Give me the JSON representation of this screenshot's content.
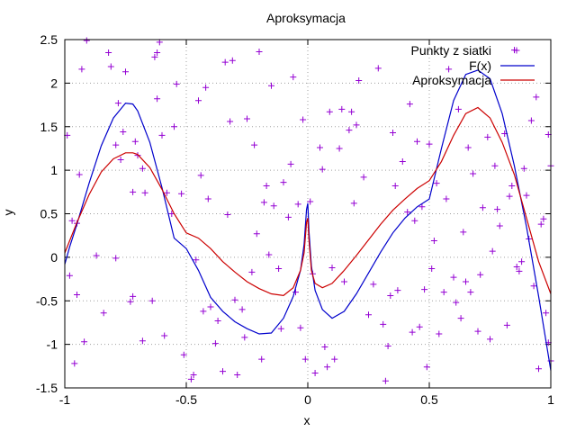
{
  "chart_data": {
    "type": "line",
    "title": "Aproksymacja",
    "xlabel": "x",
    "ylabel": "y",
    "xlim": [
      -1,
      1
    ],
    "ylim": [
      -1.5,
      2.5
    ],
    "xticks": [
      "-1",
      "-0.5",
      "0",
      "0.5",
      "1"
    ],
    "yticks": [
      "-1.5",
      "-1",
      "-0.5",
      "0",
      "0.5",
      "1",
      "1.5",
      "2",
      "2.5"
    ],
    "grid": true,
    "legend_position": "top-right",
    "series": [
      {
        "name": "Punkty z siatki",
        "style": "points",
        "marker": "+",
        "color": "#9400d3",
        "points": [
          [
            -0.99,
            1.4
          ],
          [
            -0.98,
            -0.21
          ],
          [
            -0.97,
            0.42
          ],
          [
            -0.96,
            -1.22
          ],
          [
            -0.95,
            0.39
          ],
          [
            -0.95,
            -0.43
          ],
          [
            -0.94,
            0.95
          ],
          [
            -0.93,
            2.16
          ],
          [
            -0.92,
            -0.97
          ],
          [
            -0.91,
            2.49
          ],
          [
            -0.87,
            0.02
          ],
          [
            -0.84,
            -0.64
          ],
          [
            -0.82,
            2.35
          ],
          [
            -0.81,
            2.19
          ],
          [
            -0.79,
            -0.01
          ],
          [
            -0.79,
            1.29
          ],
          [
            -0.78,
            1.77
          ],
          [
            -0.77,
            1.12
          ],
          [
            -0.76,
            1.44
          ],
          [
            -0.75,
            2.13
          ],
          [
            -0.73,
            -0.51
          ],
          [
            -0.72,
            0.75
          ],
          [
            -0.72,
            -0.45
          ],
          [
            -0.71,
            1.33
          ],
          [
            -0.7,
            1.17
          ],
          [
            -0.68,
            -0.96
          ],
          [
            -0.68,
            1.02
          ],
          [
            -0.67,
            0.74
          ],
          [
            -0.64,
            -0.5
          ],
          [
            -0.63,
            2.3
          ],
          [
            -0.62,
            2.35
          ],
          [
            -0.62,
            1.82
          ],
          [
            -0.61,
            2.47
          ],
          [
            -0.6,
            1.4
          ],
          [
            -0.59,
            -0.9
          ],
          [
            -0.58,
            0.74
          ],
          [
            -0.56,
            0.5
          ],
          [
            -0.55,
            1.5
          ],
          [
            -0.54,
            1.99
          ],
          [
            -0.52,
            0.73
          ],
          [
            -0.51,
            -1.12
          ],
          [
            -0.48,
            -1.4
          ],
          [
            -0.47,
            -1.35
          ],
          [
            -0.46,
            -0.03
          ],
          [
            -0.45,
            1.8
          ],
          [
            -0.44,
            0.94
          ],
          [
            -0.43,
            -0.62
          ],
          [
            -0.42,
            1.95
          ],
          [
            -0.41,
            0.67
          ],
          [
            -0.4,
            -0.57
          ],
          [
            -0.38,
            -0.99
          ],
          [
            -0.37,
            -0.73
          ],
          [
            -0.35,
            -1.31
          ],
          [
            -0.34,
            2.24
          ],
          [
            -0.33,
            0.49
          ],
          [
            -0.32,
            1.56
          ],
          [
            -0.31,
            2.26
          ],
          [
            -0.3,
            -0.49
          ],
          [
            -0.29,
            -1.35
          ],
          [
            -0.27,
            -0.6
          ],
          [
            -0.26,
            -0.92
          ],
          [
            -0.25,
            1.59
          ],
          [
            -0.23,
            -0.17
          ],
          [
            -0.22,
            1.29
          ],
          [
            -0.21,
            0.27
          ],
          [
            -0.2,
            2.36
          ],
          [
            -0.19,
            -1.17
          ],
          [
            -0.18,
            0.63
          ],
          [
            -0.17,
            0.82
          ],
          [
            -0.16,
            0.03
          ],
          [
            -0.15,
            1.97
          ],
          [
            -0.14,
            0.59
          ],
          [
            -0.12,
            -0.13
          ],
          [
            -0.11,
            -0.82
          ],
          [
            -0.1,
            0.86
          ],
          [
            -0.08,
            0.46
          ],
          [
            -0.07,
            1.07
          ],
          [
            -0.06,
            2.07
          ],
          [
            -0.05,
            -0.4
          ],
          [
            -0.04,
            0.61
          ],
          [
            -0.03,
            -0.81
          ],
          [
            -0.02,
            1.58
          ],
          [
            -0.01,
            -1.17
          ],
          [
            0.01,
            0.64
          ],
          [
            0.02,
            -0.19
          ],
          [
            0.03,
            -1.33
          ],
          [
            0.05,
            1.26
          ],
          [
            0.06,
            1.01
          ],
          [
            0.07,
            -1.03
          ],
          [
            0.08,
            -1.26
          ],
          [
            0.09,
            1.67
          ],
          [
            0.1,
            -0.12
          ],
          [
            0.11,
            -1.17
          ],
          [
            0.13,
            1.25
          ],
          [
            0.14,
            1.7
          ],
          [
            0.15,
            -0.28
          ],
          [
            0.17,
            1.46
          ],
          [
            0.18,
            1.67
          ],
          [
            0.19,
            0.62
          ],
          [
            0.2,
            1.52
          ],
          [
            0.21,
            2.03
          ],
          [
            0.23,
            0.92
          ],
          [
            0.25,
            -0.66
          ],
          [
            0.27,
            -0.31
          ],
          [
            0.29,
            2.17
          ],
          [
            0.31,
            -0.77
          ],
          [
            0.32,
            -1.42
          ],
          [
            0.33,
            -1.02
          ],
          [
            0.34,
            -0.44
          ],
          [
            0.35,
            1.43
          ],
          [
            0.36,
            0.82
          ],
          [
            0.37,
            -0.38
          ],
          [
            0.39,
            1.1
          ],
          [
            0.41,
            0.52
          ],
          [
            0.42,
            1.76
          ],
          [
            0.43,
            -0.86
          ],
          [
            0.44,
            0.42
          ],
          [
            0.45,
            1.33
          ],
          [
            0.46,
            -0.8
          ],
          [
            0.47,
            0.58
          ],
          [
            0.48,
            -0.37
          ],
          [
            0.49,
            -1.26
          ],
          [
            0.5,
            1.3
          ],
          [
            0.51,
            -0.13
          ],
          [
            0.52,
            0.19
          ],
          [
            0.53,
            0.85
          ],
          [
            0.54,
            -0.88
          ],
          [
            0.56,
            -0.4
          ],
          [
            0.57,
            0.67
          ],
          [
            0.58,
            2.16
          ],
          [
            0.6,
            -0.23
          ],
          [
            0.61,
            -0.52
          ],
          [
            0.62,
            1.7
          ],
          [
            0.63,
            -0.7
          ],
          [
            0.64,
            0.29
          ],
          [
            0.65,
            -0.28
          ],
          [
            0.66,
            1.26
          ],
          [
            0.67,
            -0.4
          ],
          [
            0.68,
            0.96
          ],
          [
            0.7,
            -0.85
          ],
          [
            0.71,
            -0.2
          ],
          [
            0.72,
            0.57
          ],
          [
            0.74,
            1.38
          ],
          [
            0.75,
            -0.94
          ],
          [
            0.76,
            0.07
          ],
          [
            0.77,
            1.05
          ],
          [
            0.78,
            0.55
          ],
          [
            0.79,
            0.36
          ],
          [
            0.81,
            1.42
          ],
          [
            0.82,
            -0.78
          ],
          [
            0.83,
            0.7
          ],
          [
            0.84,
            0.82
          ],
          [
            0.85,
            2.38
          ],
          [
            0.86,
            -0.11
          ],
          [
            0.87,
            -0.16
          ],
          [
            0.88,
            -0.05
          ],
          [
            0.89,
            1.02
          ],
          [
            0.9,
            0.71
          ],
          [
            0.91,
            0.21
          ],
          [
            0.92,
            1.57
          ],
          [
            0.93,
            -0.33
          ],
          [
            0.94,
            1.84
          ],
          [
            0.95,
            -1.28
          ],
          [
            0.96,
            0.38
          ],
          [
            0.97,
            0.44
          ],
          [
            0.98,
            -0.64
          ],
          [
            0.99,
            1.41
          ],
          [
            0.99,
            -0.98
          ],
          [
            1.0,
            -1.19
          ],
          [
            1.0,
            1.05
          ]
        ]
      },
      {
        "name": "F(x)",
        "style": "line",
        "color": "#0000cc",
        "x": [
          -1.0,
          -0.98,
          -0.95,
          -0.9,
          -0.85,
          -0.8,
          -0.75,
          -0.72,
          -0.7,
          -0.65,
          -0.6,
          -0.55,
          -0.5,
          -0.45,
          -0.4,
          -0.35,
          -0.3,
          -0.25,
          -0.2,
          -0.15,
          -0.1,
          -0.06,
          -0.03,
          -0.015,
          -0.005,
          0.0,
          0.005,
          0.015,
          0.03,
          0.06,
          0.1,
          0.15,
          0.2,
          0.25,
          0.3,
          0.35,
          0.4,
          0.45,
          0.5,
          0.55,
          0.6,
          0.65,
          0.7,
          0.75,
          0.8,
          0.85,
          0.9,
          0.95,
          1.0
        ],
        "y": [
          -0.08,
          0.12,
          0.38,
          0.85,
          1.28,
          1.6,
          1.77,
          1.76,
          1.68,
          1.32,
          0.8,
          0.22,
          0.1,
          -0.15,
          -0.46,
          -0.62,
          -0.74,
          -0.82,
          -0.88,
          -0.87,
          -0.7,
          -0.45,
          -0.15,
          0.15,
          0.55,
          0.62,
          0.3,
          -0.1,
          -0.38,
          -0.6,
          -0.7,
          -0.62,
          -0.42,
          -0.18,
          0.06,
          0.28,
          0.45,
          0.58,
          0.67,
          1.25,
          1.8,
          2.1,
          2.15,
          2.05,
          1.65,
          1.05,
          0.35,
          -0.45,
          -1.3
        ]
      },
      {
        "name": "Aproksymacja",
        "style": "line",
        "color": "#cc0000",
        "x": [
          -1.0,
          -0.95,
          -0.9,
          -0.85,
          -0.8,
          -0.75,
          -0.72,
          -0.7,
          -0.65,
          -0.6,
          -0.55,
          -0.5,
          -0.45,
          -0.4,
          -0.35,
          -0.3,
          -0.25,
          -0.2,
          -0.15,
          -0.1,
          -0.06,
          -0.03,
          -0.015,
          -0.005,
          0.0,
          0.005,
          0.015,
          0.03,
          0.06,
          0.1,
          0.15,
          0.2,
          0.25,
          0.3,
          0.35,
          0.4,
          0.45,
          0.5,
          0.55,
          0.6,
          0.65,
          0.7,
          0.75,
          0.8,
          0.85,
          0.9,
          0.95,
          1.0
        ],
        "y": [
          0.05,
          0.4,
          0.72,
          0.98,
          1.13,
          1.2,
          1.2,
          1.18,
          1.03,
          0.78,
          0.5,
          0.28,
          0.22,
          0.1,
          -0.05,
          -0.17,
          -0.28,
          -0.36,
          -0.42,
          -0.44,
          -0.35,
          -0.15,
          0.05,
          0.4,
          0.45,
          0.2,
          -0.15,
          -0.3,
          -0.35,
          -0.3,
          -0.15,
          0.02,
          0.2,
          0.38,
          0.54,
          0.67,
          0.79,
          0.88,
          1.1,
          1.4,
          1.65,
          1.72,
          1.6,
          1.32,
          0.95,
          0.45,
          -0.05,
          -0.42
        ]
      }
    ]
  }
}
